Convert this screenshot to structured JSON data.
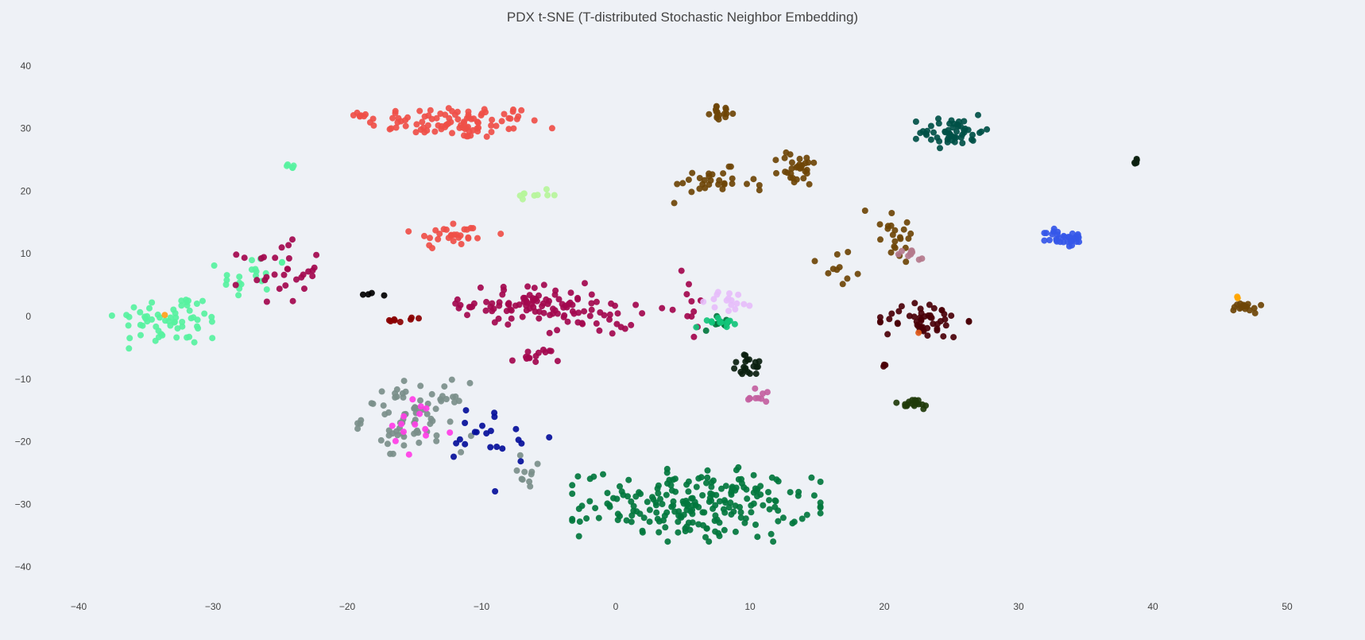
{
  "chart_data": {
    "type": "scatter",
    "title": "PDX t-SNE (T-distributed Stochastic Neighbor Embedding)",
    "xlabel": "",
    "ylabel": "",
    "xlim": [
      -40.7,
      51.3
    ],
    "ylim": [
      -45,
      45
    ],
    "x_ticks": [
      -40,
      -30,
      -20,
      -10,
      0,
      10,
      20,
      30,
      40,
      50
    ],
    "y_ticks": [
      40,
      30,
      20,
      10,
      0,
      -10,
      -20,
      -30,
      -40
    ],
    "grid": false,
    "legend": "none",
    "marker_size": 4,
    "clusters": [
      {
        "color": "#ef4f48",
        "center": [
          -12,
          31
        ],
        "spread": [
          5.5,
          2.2
        ],
        "n": 95
      },
      {
        "color": "#ef4f48",
        "center": [
          -12,
          13
        ],
        "spread": [
          2.6,
          2.0
        ],
        "n": 28
      },
      {
        "color": "#ef4f48",
        "center": [
          -19.5,
          32
        ],
        "spread": [
          1.0,
          0.3
        ],
        "n": 6
      },
      {
        "color": "#57f2a0",
        "center": [
          -33,
          -0.5
        ],
        "spread": [
          3.5,
          3.5
        ],
        "n": 60
      },
      {
        "color": "#57f2a0",
        "center": [
          -27,
          6
        ],
        "spread": [
          2.2,
          3.5
        ],
        "n": 20
      },
      {
        "color": "#57f2a0",
        "center": [
          -24.5,
          23.8
        ],
        "spread": [
          0.6,
          0.5
        ],
        "n": 5
      },
      {
        "color": "#b6f59a",
        "center": [
          -5.8,
          19.5
        ],
        "spread": [
          1.2,
          0.6
        ],
        "n": 9
      },
      {
        "color": "#a3084e",
        "center": [
          -25,
          7
        ],
        "spread": [
          2.5,
          4.0
        ],
        "n": 30
      },
      {
        "color": "#a3084e",
        "center": [
          -6,
          2
        ],
        "spread": [
          4.5,
          2.5
        ],
        "n": 90
      },
      {
        "color": "#a3084e",
        "center": [
          -2,
          -0.5
        ],
        "spread": [
          3.0,
          2.0
        ],
        "n": 25
      },
      {
        "color": "#a3084e",
        "center": [
          -6,
          -6.5
        ],
        "spread": [
          1.5,
          1.2
        ],
        "n": 14
      },
      {
        "color": "#a3084e",
        "center": [
          5,
          2
        ],
        "spread": [
          1.5,
          4.0
        ],
        "n": 12
      },
      {
        "color": "#7b8f8a",
        "center": [
          -15,
          -16
        ],
        "spread": [
          3.2,
          4.5
        ],
        "n": 75
      },
      {
        "color": "#7b8f8a",
        "center": [
          -6.5,
          -25.5
        ],
        "spread": [
          1.5,
          3.0
        ],
        "n": 10
      },
      {
        "color": "#ff3ee6",
        "center": [
          -15,
          -18
        ],
        "spread": [
          2.5,
          4.0
        ],
        "n": 14
      },
      {
        "color": "#050f9a",
        "center": [
          -9,
          -20
        ],
        "spread": [
          3.5,
          6.0
        ],
        "n": 22
      },
      {
        "color": "#02773d",
        "center": [
          6,
          -30
        ],
        "spread": [
          7.0,
          4.5
        ],
        "n": 220
      },
      {
        "color": "#02773d",
        "center": [
          8,
          -1
        ],
        "spread": [
          1.2,
          1.0
        ],
        "n": 10
      },
      {
        "color": "#12c47a",
        "center": [
          7.5,
          -0.8
        ],
        "spread": [
          1.2,
          0.8
        ],
        "n": 14
      },
      {
        "color": "#6e4506",
        "center": [
          8,
          32.5
        ],
        "spread": [
          0.8,
          0.8
        ],
        "n": 16
      },
      {
        "color": "#6e4506",
        "center": [
          7,
          21
        ],
        "spread": [
          2.8,
          2.2
        ],
        "n": 30
      },
      {
        "color": "#6e4506",
        "center": [
          13.5,
          23.5
        ],
        "spread": [
          1.2,
          2.5
        ],
        "n": 30
      },
      {
        "color": "#6e4506",
        "center": [
          20.5,
          14
        ],
        "spread": [
          2.0,
          4.0
        ],
        "n": 22
      },
      {
        "color": "#6e4506",
        "center": [
          16.5,
          7
        ],
        "spread": [
          1.5,
          3.0
        ],
        "n": 10
      },
      {
        "color": "#6e4506",
        "center": [
          47,
          1.5
        ],
        "spread": [
          0.8,
          0.8
        ],
        "n": 16
      },
      {
        "color": "#005046",
        "center": [
          25,
          29.5
        ],
        "spread": [
          2.0,
          2.0
        ],
        "n": 52
      },
      {
        "color": "#4a0008",
        "center": [
          23,
          -0.5
        ],
        "spread": [
          2.5,
          2.5
        ],
        "n": 50
      },
      {
        "color": "#4a0008",
        "center": [
          20,
          -8
        ],
        "spread": [
          0.2,
          0.3
        ],
        "n": 3
      },
      {
        "color": "#3557e8",
        "center": [
          33.5,
          12.5
        ],
        "spread": [
          1.2,
          1.2
        ],
        "n": 34
      },
      {
        "color": "#1f3b0a",
        "center": [
          22,
          -14
        ],
        "spread": [
          1.4,
          0.8
        ],
        "n": 18
      },
      {
        "color": "#0b1f0f",
        "center": [
          10,
          -8
        ],
        "spread": [
          1.2,
          1.5
        ],
        "n": 20
      },
      {
        "color": "#0b1f0f",
        "center": [
          38.7,
          24.8
        ],
        "spread": [
          0.3,
          0.4
        ],
        "n": 5
      },
      {
        "color": "#e6bdfa",
        "center": [
          8.5,
          2.5
        ],
        "spread": [
          1.5,
          1.5
        ],
        "n": 16
      },
      {
        "color": "#c35fa0",
        "center": [
          10.5,
          -12.5
        ],
        "spread": [
          1.0,
          1.5
        ],
        "n": 10
      },
      {
        "color": "#b47a8c",
        "center": [
          22,
          9.5
        ],
        "spread": [
          1.0,
          1.0
        ],
        "n": 10
      },
      {
        "color": "#000000",
        "center": [
          -17.5,
          3.5
        ],
        "spread": [
          1.0,
          0.3
        ],
        "n": 4
      },
      {
        "color": "#8a0000",
        "center": [
          -15.5,
          -0.5
        ],
        "spread": [
          1.5,
          0.3
        ],
        "n": 8
      },
      {
        "color": "#ff9f1a",
        "center": [
          -33.5,
          0.2
        ],
        "spread": [
          0.2,
          0.2
        ],
        "n": 1
      },
      {
        "color": "#ffa500",
        "center": [
          46.3,
          3
        ],
        "spread": [
          0.2,
          0.2
        ],
        "n": 2
      },
      {
        "color": "#e05a1a",
        "center": [
          22.5,
          -2.5
        ],
        "spread": [
          0.2,
          0.2
        ],
        "n": 1
      }
    ]
  }
}
